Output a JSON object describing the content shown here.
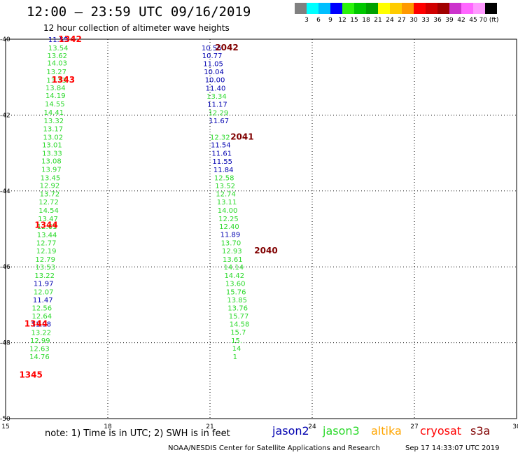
{
  "title": "12:00 – 23:59 UTC 09/16/2019",
  "subtitle": "12 hour collection of altimeter wave heights",
  "legend": {
    "colors": [
      "#808080",
      "#00ffff",
      "#00bfff",
      "#0000ff",
      "#2bf30b",
      "#00c800",
      "#00a000",
      "#ffff00",
      "#ffcc00",
      "#ff9900",
      "#ff0000",
      "#d00000",
      "#a00000",
      "#cc33cc",
      "#ff66ff",
      "#ff99ff",
      "#000000"
    ],
    "labels": [
      "3",
      "6",
      "9",
      "12",
      "15",
      "18",
      "21",
      "24",
      "27",
      "30",
      "33",
      "36",
      "39",
      "42",
      "45",
      "70 (ft)"
    ]
  },
  "colors": {
    "jason2": "#0000b0",
    "jason3": "#2bd92b",
    "altika": "#ffa500",
    "cryosat": "#ff0000",
    "s3a": "#800000"
  },
  "axes": {
    "lat_ticks": [
      "-40",
      "-42",
      "-44",
      "-46",
      "-48",
      "-50"
    ],
    "lon_ticks": [
      "15",
      "18",
      "21",
      "24",
      "27",
      "30"
    ]
  },
  "tracks": [
    {
      "satellite": "cryosat",
      "pass_labels": [
        {
          "text": "1342",
          "lon": 16.55,
          "lat": -40.0
        },
        {
          "text": "1343",
          "lon": 16.35,
          "lat": -41.07
        },
        {
          "text": "1344",
          "lon": 15.85,
          "lat": -44.9
        },
        {
          "text": "1344",
          "lon": 15.55,
          "lat": -47.5
        },
        {
          "text": "1345",
          "lon": 15.4,
          "lat": -48.85
        }
      ],
      "points": [
        {
          "v": "11.55",
          "sat": "jason2",
          "lon": 16.25,
          "lat": -40.0
        },
        {
          "v": "13.54",
          "sat": "jason3",
          "lon": 16.25,
          "lat": -40.22
        },
        {
          "v": "13.62",
          "sat": "jason3",
          "lon": 16.22,
          "lat": -40.42
        },
        {
          "v": "14.03",
          "sat": "jason3",
          "lon": 16.22,
          "lat": -40.62
        },
        {
          "v": "13.27",
          "sat": "jason3",
          "lon": 16.2,
          "lat": -40.85
        },
        {
          "v": "13.33",
          "sat": "jason3",
          "lon": 16.2,
          "lat": -41.07
        },
        {
          "v": "13.84",
          "sat": "jason3",
          "lon": 16.17,
          "lat": -41.27
        },
        {
          "v": "14.19",
          "sat": "jason3",
          "lon": 16.17,
          "lat": -41.48
        },
        {
          "v": "14.55",
          "sat": "jason3",
          "lon": 16.15,
          "lat": -41.7
        },
        {
          "v": "14.41",
          "sat": "jason3",
          "lon": 16.12,
          "lat": -41.92
        },
        {
          "v": "13.32",
          "sat": "jason3",
          "lon": 16.12,
          "lat": -42.14
        },
        {
          "v": "13.17",
          "sat": "jason3",
          "lon": 16.1,
          "lat": -42.35
        },
        {
          "v": "13.02",
          "sat": "jason3",
          "lon": 16.1,
          "lat": -42.57
        },
        {
          "v": "13.01",
          "sat": "jason3",
          "lon": 16.07,
          "lat": -42.78
        },
        {
          "v": "13.33",
          "sat": "jason3",
          "lon": 16.07,
          "lat": -43.0
        },
        {
          "v": "13.08",
          "sat": "jason3",
          "lon": 16.05,
          "lat": -43.2
        },
        {
          "v": "13.97",
          "sat": "jason3",
          "lon": 16.05,
          "lat": -43.42
        },
        {
          "v": "13.45",
          "sat": "jason3",
          "lon": 16.02,
          "lat": -43.64
        },
        {
          "v": "12.92",
          "sat": "jason3",
          "lon": 16.0,
          "lat": -43.85
        },
        {
          "v": "13.72",
          "sat": "jason3",
          "lon": 16.0,
          "lat": -44.07
        },
        {
          "v": "12.72",
          "sat": "jason3",
          "lon": 15.97,
          "lat": -44.28
        },
        {
          "v": "14.54",
          "sat": "jason3",
          "lon": 15.97,
          "lat": -44.5
        },
        {
          "v": "13.47",
          "sat": "jason3",
          "lon": 15.95,
          "lat": -44.72
        },
        {
          "v": "12.61",
          "sat": "jason3",
          "lon": 15.92,
          "lat": -44.93
        },
        {
          "v": "13.44",
          "sat": "jason3",
          "lon": 15.92,
          "lat": -45.15
        },
        {
          "v": "12.77",
          "sat": "jason3",
          "lon": 15.9,
          "lat": -45.36
        },
        {
          "v": "12.19",
          "sat": "jason3",
          "lon": 15.9,
          "lat": -45.57
        },
        {
          "v": "12.79",
          "sat": "jason3",
          "lon": 15.87,
          "lat": -45.79
        },
        {
          "v": "13.53",
          "sat": "jason3",
          "lon": 15.87,
          "lat": -46.0
        },
        {
          "v": "13.22",
          "sat": "jason3",
          "lon": 15.85,
          "lat": -46.22
        },
        {
          "v": "11.97",
          "sat": "jason2",
          "lon": 15.82,
          "lat": -46.43
        },
        {
          "v": "12.07",
          "sat": "jason3",
          "lon": 15.82,
          "lat": -46.65
        },
        {
          "v": "11.47",
          "sat": "jason2",
          "lon": 15.8,
          "lat": -46.86
        },
        {
          "v": "12.56",
          "sat": "jason3",
          "lon": 15.77,
          "lat": -47.08
        },
        {
          "v": "12.64",
          "sat": "jason3",
          "lon": 15.77,
          "lat": -47.29
        },
        {
          "v": "11.98",
          "sat": "jason2",
          "lon": 15.75,
          "lat": -47.5
        },
        {
          "v": "13.22",
          "sat": "jason3",
          "lon": 15.75,
          "lat": -47.72
        },
        {
          "v": "12.99",
          "sat": "jason3",
          "lon": 15.72,
          "lat": -47.93
        },
        {
          "v": "12.63",
          "sat": "jason3",
          "lon": 15.7,
          "lat": -48.15
        },
        {
          "v": "14.76",
          "sat": "jason3",
          "lon": 15.7,
          "lat": -48.36
        }
      ]
    },
    {
      "satellite": "s3a",
      "pass_labels": [
        {
          "text": "2042",
          "lon": 21.15,
          "lat": -40.22
        },
        {
          "text": "2041",
          "lon": 21.6,
          "lat": -42.57
        },
        {
          "text": "2040",
          "lon": 22.3,
          "lat": -45.57
        }
      ],
      "points": [
        {
          "v": "10.56",
          "sat": "jason2",
          "lon": 20.75,
          "lat": -40.22
        },
        {
          "v": "10.77",
          "sat": "jason2",
          "lon": 20.77,
          "lat": -40.42
        },
        {
          "v": "11.05",
          "sat": "jason2",
          "lon": 20.8,
          "lat": -40.64
        },
        {
          "v": "10.04",
          "sat": "jason2",
          "lon": 20.82,
          "lat": -40.85
        },
        {
          "v": "10.00",
          "sat": "jason2",
          "lon": 20.85,
          "lat": -41.06
        },
        {
          "v": "11.40",
          "sat": "jason2",
          "lon": 20.87,
          "lat": -41.28
        },
        {
          "v": "13.34",
          "sat": "jason3",
          "lon": 20.9,
          "lat": -41.49
        },
        {
          "v": "11.17",
          "sat": "jason2",
          "lon": 20.92,
          "lat": -41.71
        },
        {
          "v": "12.29",
          "sat": "jason3",
          "lon": 20.95,
          "lat": -41.93
        },
        {
          "v": "11.67",
          "sat": "jason2",
          "lon": 20.97,
          "lat": -42.14
        },
        {
          "v": "12.32",
          "sat": "jason3",
          "lon": 21.0,
          "lat": -42.57
        },
        {
          "v": "11.54",
          "sat": "jason2",
          "lon": 21.02,
          "lat": -42.78
        },
        {
          "v": "11.61",
          "sat": "jason2",
          "lon": 21.05,
          "lat": -43.0
        },
        {
          "v": "11.55",
          "sat": "jason2",
          "lon": 21.07,
          "lat": -43.21
        },
        {
          "v": "11.84",
          "sat": "jason2",
          "lon": 21.1,
          "lat": -43.43
        },
        {
          "v": "12.58",
          "sat": "jason3",
          "lon": 21.12,
          "lat": -43.64
        },
        {
          "v": "13.52",
          "sat": "jason3",
          "lon": 21.15,
          "lat": -43.86
        },
        {
          "v": "12.74",
          "sat": "jason3",
          "lon": 21.17,
          "lat": -44.07
        },
        {
          "v": "13.11",
          "sat": "jason3",
          "lon": 21.2,
          "lat": -44.28
        },
        {
          "v": "14.00",
          "sat": "jason3",
          "lon": 21.22,
          "lat": -44.5
        },
        {
          "v": "12.25",
          "sat": "jason3",
          "lon": 21.25,
          "lat": -44.72
        },
        {
          "v": "12.40",
          "sat": "jason3",
          "lon": 21.27,
          "lat": -44.93
        },
        {
          "v": "11.89",
          "sat": "jason2",
          "lon": 21.3,
          "lat": -45.14
        },
        {
          "v": "13.70",
          "sat": "jason3",
          "lon": 21.32,
          "lat": -45.36
        },
        {
          "v": "12.93",
          "sat": "jason3",
          "lon": 21.35,
          "lat": -45.57
        },
        {
          "v": "13.61",
          "sat": "jason3",
          "lon": 21.37,
          "lat": -45.79
        },
        {
          "v": "14.14",
          "sat": "jason3",
          "lon": 21.4,
          "lat": -46.0
        },
        {
          "v": "14.42",
          "sat": "jason3",
          "lon": 21.42,
          "lat": -46.22
        },
        {
          "v": "13.60",
          "sat": "jason3",
          "lon": 21.45,
          "lat": -46.43
        },
        {
          "v": "15.76",
          "sat": "jason3",
          "lon": 21.47,
          "lat": -46.65
        },
        {
          "v": "13.85",
          "sat": "jason3",
          "lon": 21.5,
          "lat": -46.86
        },
        {
          "v": "13.76",
          "sat": "jason3",
          "lon": 21.52,
          "lat": -47.08
        },
        {
          "v": "15.77",
          "sat": "jason3",
          "lon": 21.55,
          "lat": -47.29
        },
        {
          "v": "14.58",
          "sat": "jason3",
          "lon": 21.57,
          "lat": -47.5
        },
        {
          "v": "15.7",
          "sat": "jason3",
          "lon": 21.6,
          "lat": -47.71
        },
        {
          "v": "15.",
          "sat": "jason3",
          "lon": 21.62,
          "lat": -47.93
        },
        {
          "v": "14",
          "sat": "jason3",
          "lon": 21.65,
          "lat": -48.14
        },
        {
          "v": "1",
          "sat": "jason3",
          "lon": 21.67,
          "lat": -48.36
        }
      ]
    }
  ],
  "note": "note:  1)  Time is in UTC;  2)  SWH is in feet",
  "satellites": [
    {
      "name": "jason2",
      "color_key": "jason2"
    },
    {
      "name": "jason3",
      "color_key": "jason3"
    },
    {
      "name": "altika",
      "color_key": "altika"
    },
    {
      "name": "cryosat",
      "color_key": "cryosat"
    },
    {
      "name": "s3a",
      "color_key": "s3a"
    }
  ],
  "credit": "NOAA/NESDIS Center for Satellite Applications and Research",
  "timestamp": "Sep 17 14:33:07 UTC 2019"
}
